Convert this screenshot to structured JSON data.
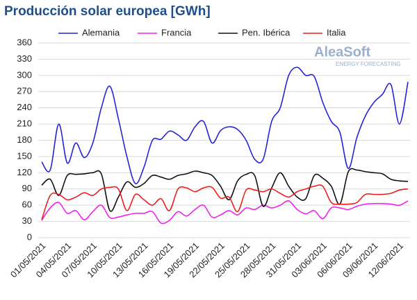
{
  "chart_data": {
    "type": "line",
    "title": "Producción solar europea [GWh]",
    "watermark": {
      "name": "AleaSoft",
      "tagline": "ENERGY FORECASTING"
    },
    "categories": [
      "01/05/2021",
      null,
      null,
      "04/05/2021",
      null,
      null,
      "07/05/2021",
      null,
      null,
      "10/05/2021",
      null,
      null,
      "13/05/2021",
      null,
      null,
      "16/05/2021",
      null,
      null,
      "19/05/2021",
      null,
      null,
      "22/05/2021",
      null,
      null,
      "25/05/2021",
      null,
      null,
      "28/05/2021",
      null,
      null,
      "31/05/2021",
      null,
      null,
      "03/06/2021",
      null,
      null,
      "06/06/2021",
      null,
      null,
      "09/06/2021",
      null,
      null,
      "12/06/2021",
      null
    ],
    "series": [
      {
        "name": "Alemania",
        "color": "#2323d8",
        "values": [
          140,
          125,
          210,
          138,
          175,
          148,
          175,
          240,
          280,
          220,
          150,
          100,
          130,
          180,
          182,
          197,
          190,
          180,
          205,
          215,
          175,
          198,
          205,
          200,
          180,
          145,
          145,
          215,
          240,
          300,
          315,
          300,
          298,
          250,
          215,
          195,
          128,
          185,
          225,
          250,
          265,
          283,
          210,
          288
        ]
      },
      {
        "name": "Francia",
        "color": "#ee22ee",
        "values": [
          32,
          55,
          65,
          45,
          50,
          33,
          48,
          60,
          37,
          38,
          42,
          45,
          45,
          48,
          27,
          32,
          48,
          40,
          52,
          60,
          38,
          42,
          50,
          42,
          55,
          52,
          60,
          55,
          60,
          68,
          52,
          44,
          50,
          35,
          55,
          55,
          52,
          58,
          62,
          63,
          63,
          62,
          60,
          68
        ]
      },
      {
        "name": "Pen. Ibérica",
        "color": "#111111",
        "values": [
          97,
          108,
          78,
          115,
          117,
          118,
          120,
          118,
          50,
          75,
          103,
          93,
          100,
          115,
          112,
          108,
          115,
          118,
          123,
          120,
          115,
          95,
          70,
          105,
          117,
          115,
          58,
          92,
          120,
          95,
          75,
          72,
          115,
          110,
          95,
          62,
          122,
          125,
          122,
          120,
          118,
          108,
          105,
          104
        ]
      },
      {
        "name": "Italia",
        "color": "#e82020",
        "values": [
          33,
          78,
          80,
          70,
          75,
          83,
          78,
          90,
          93,
          90,
          50,
          80,
          70,
          60,
          72,
          50,
          90,
          92,
          85,
          92,
          93,
          73,
          75,
          48,
          88,
          88,
          85,
          90,
          82,
          75,
          85,
          90,
          95,
          95,
          65,
          62,
          62,
          65,
          80,
          80,
          80,
          82,
          88,
          90
        ]
      }
    ],
    "ylim": [
      0,
      360
    ],
    "yticks": [
      0,
      30,
      60,
      90,
      120,
      150,
      180,
      210,
      240,
      270,
      300,
      330,
      360
    ],
    "grid": true,
    "legend": "top"
  }
}
